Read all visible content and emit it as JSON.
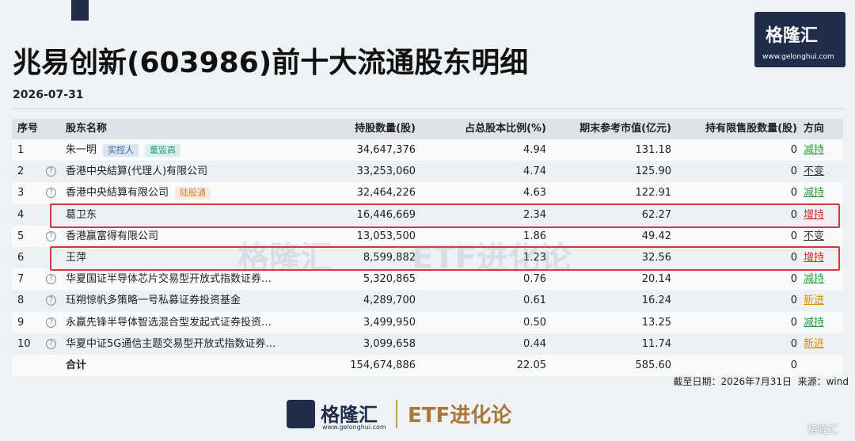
{
  "header": {
    "title": "兆易创新(603986)前十大流通股东明细",
    "date": "2026-07-31",
    "logo": {
      "name": "格隆汇",
      "url": "www.gelonghui.com"
    }
  },
  "table": {
    "columns": [
      "序号",
      "股东名称",
      "持股数量(股)",
      "占总股本比例(%)",
      "期末参考市值(亿元)",
      "持有限售股数量(股)",
      "方向"
    ],
    "rows": [
      {
        "index": "1",
        "name": "朱一明",
        "info": false,
        "tags": [
          "实控人",
          "董监高"
        ],
        "shares": "34,647,376",
        "ratio": "4.94",
        "value": "131.18",
        "restricted": "0",
        "direction": "减持",
        "direction_color": "#2e9b3a"
      },
      {
        "index": "2",
        "name": "香港中央結算(代理人)有限公司",
        "info": true,
        "tags": [],
        "shares": "33,253,060",
        "ratio": "4.74",
        "value": "125.90",
        "restricted": "0",
        "direction": "不变",
        "direction_color": "#333333"
      },
      {
        "index": "3",
        "name": "香港中央結算有限公司",
        "info": true,
        "tags": [
          "陆股通"
        ],
        "shares": "32,464,226",
        "ratio": "4.63",
        "value": "122.91",
        "restricted": "0",
        "direction": "减持",
        "direction_color": "#2e9b3a"
      },
      {
        "index": "4",
        "name": "葛卫东",
        "info": false,
        "tags": [],
        "shares": "16,446,669",
        "ratio": "2.34",
        "value": "62.27",
        "restricted": "0",
        "direction": "增持",
        "direction_color": "#d62b2b"
      },
      {
        "index": "5",
        "name": "香港赢富得有限公司",
        "info": true,
        "tags": [],
        "shares": "13,053,500",
        "ratio": "1.86",
        "value": "49.42",
        "restricted": "0",
        "direction": "不变",
        "direction_color": "#333333"
      },
      {
        "index": "6",
        "name": "王萍",
        "info": false,
        "tags": [],
        "shares": "8,599,882",
        "ratio": "1.23",
        "value": "32.56",
        "restricted": "0",
        "direction": "增持",
        "direction_color": "#d62b2b"
      },
      {
        "index": "7",
        "name": "华夏国证半导体芯片交易型开放式指数证券…",
        "info": true,
        "tags": [],
        "shares": "5,320,865",
        "ratio": "0.76",
        "value": "20.14",
        "restricted": "0",
        "direction": "减持",
        "direction_color": "#2e9b3a"
      },
      {
        "index": "8",
        "name": "珏朔惊帆多策略一号私募证券投资基金",
        "info": true,
        "tags": [],
        "shares": "4,289,700",
        "ratio": "0.61",
        "value": "16.24",
        "restricted": "0",
        "direction": "新进",
        "direction_color": "#e08a00"
      },
      {
        "index": "9",
        "name": "永赢先锋半导体智选混合型发起式证券投资…",
        "info": true,
        "tags": [],
        "shares": "3,499,950",
        "ratio": "0.50",
        "value": "13.25",
        "restricted": "0",
        "direction": "减持",
        "direction_color": "#2e9b3a"
      },
      {
        "index": "10",
        "name": "华夏中证5G通信主题交易型开放式指数证券…",
        "info": true,
        "tags": [],
        "shares": "3,099,658",
        "ratio": "0.44",
        "value": "11.74",
        "restricted": "0",
        "direction": "新进",
        "direction_color": "#e08a00"
      }
    ],
    "total": {
      "label": "合计",
      "shares": "154,674,886",
      "ratio": "22.05",
      "value": "585.60",
      "restricted": "0"
    }
  },
  "footer": {
    "note": "截至日期：2026年7月31日  来源：wind",
    "logo_name": "格隆汇",
    "logo_url": "www.gelonghui.com",
    "brand": "ETF进化论",
    "watermark": "格隆汇"
  }
}
